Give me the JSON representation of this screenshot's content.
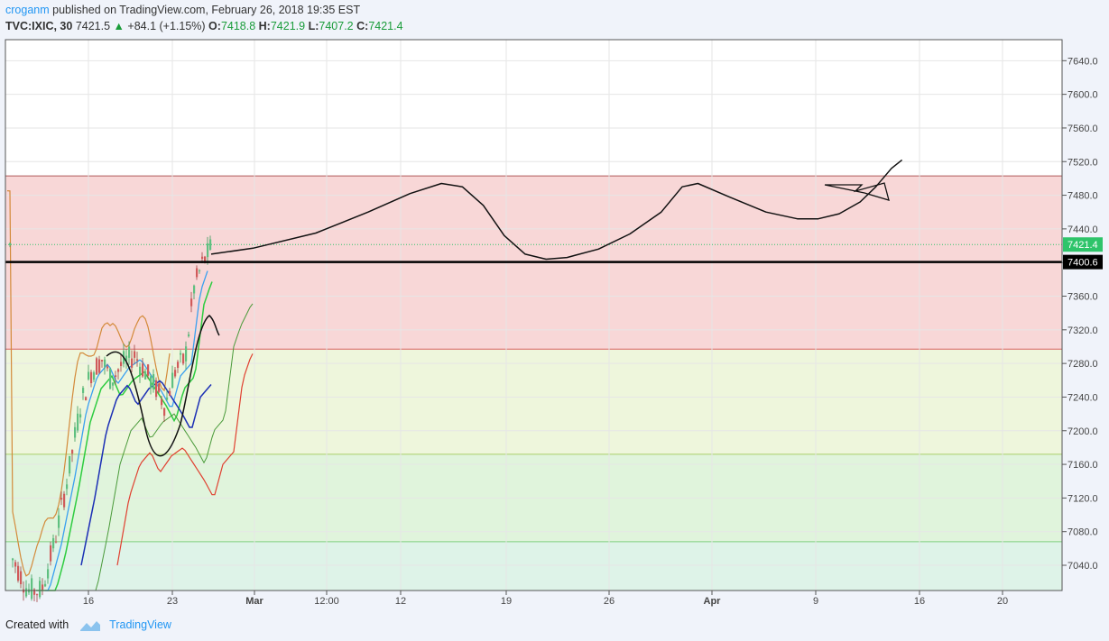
{
  "header": {
    "author": "croganm",
    "published": "published on TradingView.com, February 26, 2018 19:35 EST",
    "symbol": "TVC:IXIC, 30",
    "last": "7421.5",
    "change": "+84.1 (+1.15%)",
    "o_label": "O:",
    "o_value": "7418.8",
    "h_label": "H:",
    "h_value": "7421.9",
    "l_label": "L:",
    "l_value": "7407.2",
    "c_label": "C:",
    "c_value": "7421.4"
  },
  "footer": {
    "created_with": "Created with",
    "brand": "TradingView"
  },
  "chart_data": {
    "type": "line",
    "y_axis": {
      "range": [
        7010,
        7665
      ],
      "ticks": [
        "7640.0",
        "7600.0",
        "7560.0",
        "7520.0",
        "7480.0",
        "7440.0",
        "7400.0",
        "7360.0",
        "7320.0",
        "7280.0",
        "7240.0",
        "7200.0",
        "7160.0",
        "7120.0",
        "7080.0",
        "7040.0"
      ],
      "tick_values": [
        7640,
        7600,
        7560,
        7520,
        7480,
        7440,
        7400,
        7360,
        7320,
        7280,
        7240,
        7200,
        7160,
        7120,
        7080,
        7040
      ]
    },
    "x_axis": {
      "ticks": [
        {
          "label": "16",
          "bold": false
        },
        {
          "label": "23",
          "bold": false
        },
        {
          "label": "Mar",
          "bold": true
        },
        {
          "label": "12:00",
          "bold": false
        },
        {
          "label": "12",
          "bold": false
        },
        {
          "label": "19",
          "bold": false
        },
        {
          "label": "26",
          "bold": false
        },
        {
          "label": "Apr",
          "bold": true
        },
        {
          "label": "9",
          "bold": false
        },
        {
          "label": "16",
          "bold": false
        },
        {
          "label": "20",
          "bold": false
        }
      ]
    },
    "zones": [
      {
        "from": 7297,
        "to": 7503,
        "color": "#f8d7d7"
      },
      {
        "from": 7172,
        "to": 7297,
        "color": "#eef6dc"
      },
      {
        "from": 7068,
        "to": 7172,
        "color": "#e0f4dc"
      },
      {
        "from": 7010,
        "to": 7068,
        "color": "#def3e8"
      }
    ],
    "zone_lines": [
      {
        "value": 7503,
        "color": "#b05a5a"
      },
      {
        "value": 7297,
        "color": "#d96060"
      },
      {
        "value": 7172,
        "color": "#a8cf6a"
      },
      {
        "value": 7068,
        "color": "#7fcf7f"
      }
    ],
    "horizontal_line": {
      "value": 7400.6,
      "label": "7400.6",
      "color": "#000000"
    },
    "last_price": {
      "value": 7421.4,
      "label": "7421.4",
      "color": "#2ec46a"
    },
    "projection_path": [
      [
        7410,
        0
      ],
      [
        7417,
        0.08
      ],
      [
        7435,
        0.2
      ],
      [
        7460,
        0.3
      ],
      [
        7482,
        0.38
      ],
      [
        7494,
        0.44
      ],
      [
        7490,
        0.48
      ],
      [
        7468,
        0.52
      ],
      [
        7432,
        0.56
      ],
      [
        7410,
        0.6
      ],
      [
        7404,
        0.64
      ],
      [
        7406,
        0.68
      ],
      [
        7416,
        0.74
      ],
      [
        7434,
        0.8
      ],
      [
        7460,
        0.86
      ],
      [
        7490,
        0.9
      ],
      [
        7494,
        0.93
      ],
      [
        7478,
        0.99
      ],
      [
        7460,
        1.06
      ],
      [
        7452,
        1.12
      ],
      [
        7452,
        1.16
      ],
      [
        7458,
        1.2
      ],
      [
        7472,
        1.24
      ],
      [
        7490,
        1.27
      ],
      [
        7512,
        1.3
      ],
      [
        7522,
        1.32
      ]
    ]
  }
}
